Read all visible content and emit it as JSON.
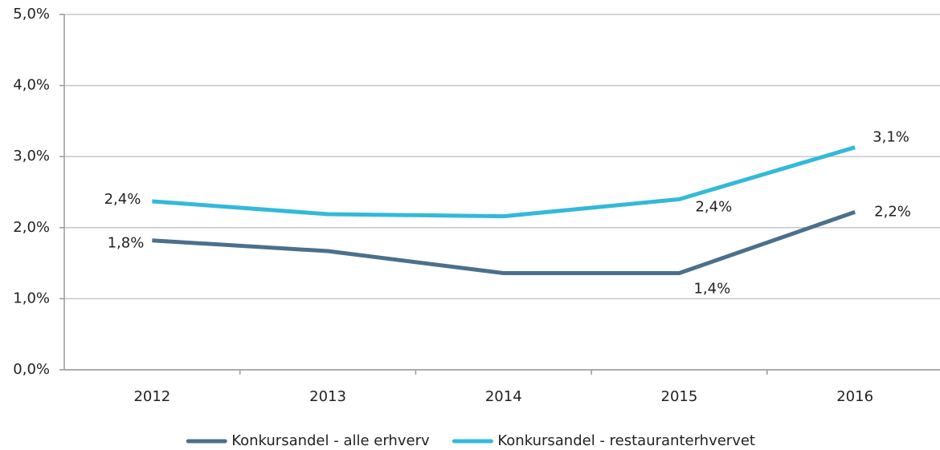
{
  "chart_data": {
    "type": "line",
    "categories": [
      "2012",
      "2013",
      "2014",
      "2015",
      "2016"
    ],
    "series": [
      {
        "name": "Konkursandel - alle erhverv",
        "color": "#4b708c",
        "values": [
          1.82,
          1.67,
          1.36,
          1.36,
          2.22
        ],
        "value_labels": [
          "1,8%",
          null,
          null,
          "1,4%",
          "2,2%"
        ]
      },
      {
        "name": "Konkursandel - restauranterhvervet",
        "color": "#33b9d9",
        "values": [
          2.37,
          2.19,
          2.16,
          2.4,
          3.13
        ],
        "value_labels": [
          "2,4%",
          null,
          null,
          "2,4%",
          "3,1%"
        ]
      }
    ],
    "ylim": [
      0,
      5
    ],
    "yticks": [
      {
        "value": 0,
        "label": "0,0%"
      },
      {
        "value": 1,
        "label": "1,0%"
      },
      {
        "value": 2,
        "label": "2,0%"
      },
      {
        "value": 3,
        "label": "3,0%"
      },
      {
        "value": 4,
        "label": "4,0%"
      },
      {
        "value": 5,
        "label": "5,0%"
      }
    ],
    "grid": true,
    "legend": "bottom"
  }
}
